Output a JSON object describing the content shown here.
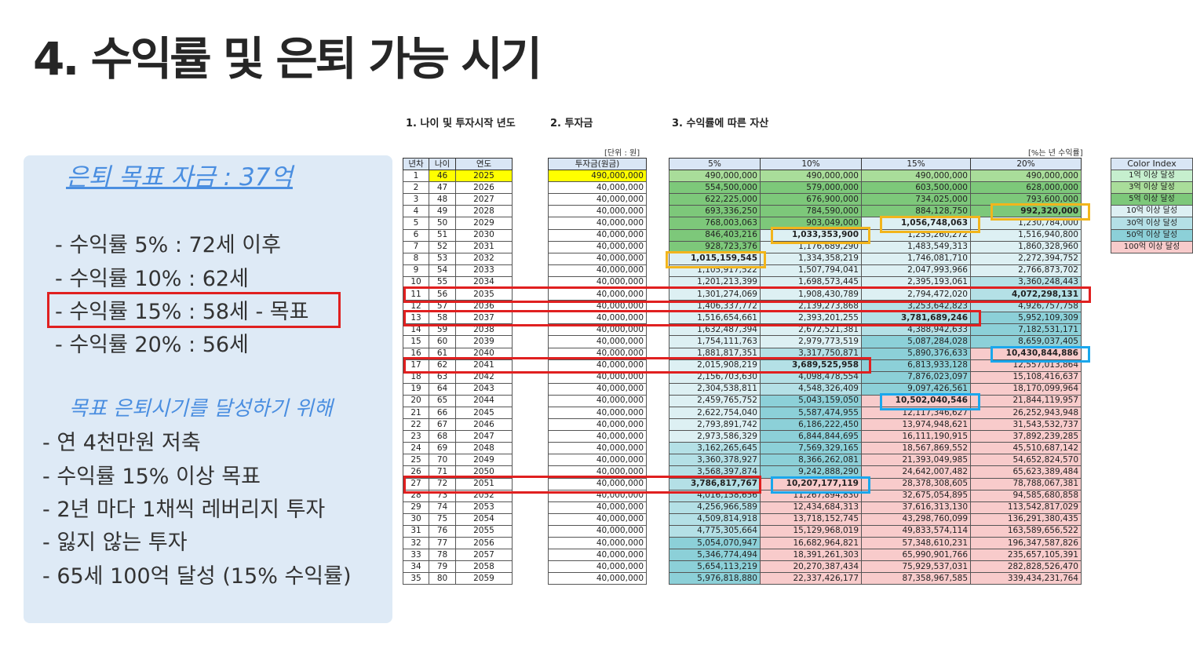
{
  "title": "4. 수익률 및 은퇴 가능 시기",
  "panel": {
    "goal": "은퇴 목표 자금 : 37억",
    "yields": [
      "- 수익률   5% : 72세 이후",
      "- 수익률 10% : 62세",
      "- 수익률 15% : 58세 - 목표",
      "- 수익률 20% : 56세"
    ],
    "subtitle": "목표 은퇴시기를 달성하기 위해",
    "tips": [
      "- 연 4천만원 저축",
      "- 수익률 15% 이상 목표",
      "- 2년 마다 1채씩 레버리지 투자",
      "- 잃지 않는 투자",
      "- 65세 100억 달성 (15% 수익률)"
    ]
  },
  "sections": {
    "s1": "1. 나이 및 투자시작 년도",
    "s2": "2. 투자금",
    "s3": "3. 수익률에 따른 자산"
  },
  "units": {
    "invest": "[단위 : 원]",
    "rate": "[%는 년 수익률]"
  },
  "headers": {
    "age_table": [
      "년차",
      "나이",
      "연도"
    ],
    "invest": "투자금(원금)",
    "rates": [
      "5%",
      "10%",
      "15%",
      "20%"
    ]
  },
  "color_index": {
    "title": "Color Index",
    "items": [
      {
        "label": "1억 이상 달성",
        "color": "#c6efce"
      },
      {
        "label": "3억 이상 달성",
        "color": "#a9dd9a"
      },
      {
        "label": "5억 이상 달성",
        "color": "#7dc87a"
      },
      {
        "label": "10억 이상 달성",
        "color": "#ddf0f3"
      },
      {
        "label": "30억 이상 달성",
        "color": "#b4e0e6"
      },
      {
        "label": "50억 이상 달성",
        "color": "#8cd0d8"
      },
      {
        "label": "100억 이상 달성",
        "color": "#f8cbcb"
      }
    ]
  },
  "rows": [
    {
      "n": "1",
      "age": "46",
      "year": "2025",
      "inv": "490,000,000",
      "v": [
        "490,000,000",
        "490,000,000",
        "490,000,000",
        "490,000,000"
      ]
    },
    {
      "n": "2",
      "age": "47",
      "year": "2026",
      "inv": "40,000,000",
      "v": [
        "554,500,000",
        "579,000,000",
        "603,500,000",
        "628,000,000"
      ]
    },
    {
      "n": "3",
      "age": "48",
      "year": "2027",
      "inv": "40,000,000",
      "v": [
        "622,225,000",
        "676,900,000",
        "734,025,000",
        "793,600,000"
      ]
    },
    {
      "n": "4",
      "age": "49",
      "year": "2028",
      "inv": "40,000,000",
      "v": [
        "693,336,250",
        "784,590,000",
        "884,128,750",
        "992,320,000"
      ]
    },
    {
      "n": "5",
      "age": "50",
      "year": "2029",
      "inv": "40,000,000",
      "v": [
        "768,003,063",
        "903,049,000",
        "1,056,748,063",
        "1,230,784,000"
      ]
    },
    {
      "n": "6",
      "age": "51",
      "year": "2030",
      "inv": "40,000,000",
      "v": [
        "846,403,216",
        "1,033,353,900",
        "1,255,260,272",
        "1,516,940,800"
      ]
    },
    {
      "n": "7",
      "age": "52",
      "year": "2031",
      "inv": "40,000,000",
      "v": [
        "928,723,376",
        "1,176,689,290",
        "1,483,549,313",
        "1,860,328,960"
      ]
    },
    {
      "n": "8",
      "age": "53",
      "year": "2032",
      "inv": "40,000,000",
      "v": [
        "1,015,159,545",
        "1,334,358,219",
        "1,746,081,710",
        "2,272,394,752"
      ]
    },
    {
      "n": "9",
      "age": "54",
      "year": "2033",
      "inv": "40,000,000",
      "v": [
        "1,105,917,522",
        "1,507,794,041",
        "2,047,993,966",
        "2,766,873,702"
      ]
    },
    {
      "n": "10",
      "age": "55",
      "year": "2034",
      "inv": "40,000,000",
      "v": [
        "1,201,213,399",
        "1,698,573,445",
        "2,395,193,061",
        "3,360,248,443"
      ]
    },
    {
      "n": "11",
      "age": "56",
      "year": "2035",
      "inv": "40,000,000",
      "v": [
        "1,301,274,069",
        "1,908,430,789",
        "2,794,472,020",
        "4,072,298,131"
      ]
    },
    {
      "n": "12",
      "age": "57",
      "year": "2036",
      "inv": "40,000,000",
      "v": [
        "1,406,337,772",
        "2,139,273,868",
        "3,253,642,823",
        "4,926,757,758"
      ]
    },
    {
      "n": "13",
      "age": "58",
      "year": "2037",
      "inv": "40,000,000",
      "v": [
        "1,516,654,661",
        "2,393,201,255",
        "3,781,689,246",
        "5,952,109,309"
      ]
    },
    {
      "n": "14",
      "age": "59",
      "year": "2038",
      "inv": "40,000,000",
      "v": [
        "1,632,487,394",
        "2,672,521,381",
        "4,388,942,633",
        "7,182,531,171"
      ]
    },
    {
      "n": "15",
      "age": "60",
      "year": "2039",
      "inv": "40,000,000",
      "v": [
        "1,754,111,763",
        "2,979,773,519",
        "5,087,284,028",
        "8,659,037,405"
      ]
    },
    {
      "n": "16",
      "age": "61",
      "year": "2040",
      "inv": "40,000,000",
      "v": [
        "1,881,817,351",
        "3,317,750,871",
        "5,890,376,633",
        "10,430,844,886"
      ]
    },
    {
      "n": "17",
      "age": "62",
      "year": "2041",
      "inv": "40,000,000",
      "v": [
        "2,015,908,219",
        "3,689,525,958",
        "6,813,933,128",
        "12,557,013,864"
      ]
    },
    {
      "n": "18",
      "age": "63",
      "year": "2042",
      "inv": "40,000,000",
      "v": [
        "2,156,703,630",
        "4,098,478,554",
        "7,876,023,097",
        "15,108,416,637"
      ]
    },
    {
      "n": "19",
      "age": "64",
      "year": "2043",
      "inv": "40,000,000",
      "v": [
        "2,304,538,811",
        "4,548,326,409",
        "9,097,426,561",
        "18,170,099,964"
      ]
    },
    {
      "n": "20",
      "age": "65",
      "year": "2044",
      "inv": "40,000,000",
      "v": [
        "2,459,765,752",
        "5,043,159,050",
        "10,502,040,546",
        "21,844,119,957"
      ]
    },
    {
      "n": "21",
      "age": "66",
      "year": "2045",
      "inv": "40,000,000",
      "v": [
        "2,622,754,040",
        "5,587,474,955",
        "12,117,346,627",
        "26,252,943,948"
      ]
    },
    {
      "n": "22",
      "age": "67",
      "year": "2046",
      "inv": "40,000,000",
      "v": [
        "2,793,891,742",
        "6,186,222,450",
        "13,974,948,621",
        "31,543,532,737"
      ]
    },
    {
      "n": "23",
      "age": "68",
      "year": "2047",
      "inv": "40,000,000",
      "v": [
        "2,973,586,329",
        "6,844,844,695",
        "16,111,190,915",
        "37,892,239,285"
      ]
    },
    {
      "n": "24",
      "age": "69",
      "year": "2048",
      "inv": "40,000,000",
      "v": [
        "3,162,265,645",
        "7,569,329,165",
        "18,567,869,552",
        "45,510,687,142"
      ]
    },
    {
      "n": "25",
      "age": "70",
      "year": "2049",
      "inv": "40,000,000",
      "v": [
        "3,360,378,927",
        "8,366,262,081",
        "21,393,049,985",
        "54,652,824,570"
      ]
    },
    {
      "n": "26",
      "age": "71",
      "year": "2050",
      "inv": "40,000,000",
      "v": [
        "3,568,397,874",
        "9,242,888,290",
        "24,642,007,482",
        "65,623,389,484"
      ]
    },
    {
      "n": "27",
      "age": "72",
      "year": "2051",
      "inv": "40,000,000",
      "v": [
        "3,786,817,767",
        "10,207,177,119",
        "28,378,308,605",
        "78,788,067,381"
      ]
    },
    {
      "n": "28",
      "age": "73",
      "year": "2052",
      "inv": "40,000,000",
      "v": [
        "4,016,158,656",
        "11,267,894,830",
        "32,675,054,895",
        "94,585,680,858"
      ]
    },
    {
      "n": "29",
      "age": "74",
      "year": "2053",
      "inv": "40,000,000",
      "v": [
        "4,256,966,589",
        "12,434,684,313",
        "37,616,313,130",
        "113,542,817,029"
      ]
    },
    {
      "n": "30",
      "age": "75",
      "year": "2054",
      "inv": "40,000,000",
      "v": [
        "4,509,814,918",
        "13,718,152,745",
        "43,298,760,099",
        "136,291,380,435"
      ]
    },
    {
      "n": "31",
      "age": "76",
      "year": "2055",
      "inv": "40,000,000",
      "v": [
        "4,775,305,664",
        "15,129,968,019",
        "49,833,574,114",
        "163,589,656,522"
      ]
    },
    {
      "n": "32",
      "age": "77",
      "year": "2056",
      "inv": "40,000,000",
      "v": [
        "5,054,070,947",
        "16,682,964,821",
        "57,348,610,231",
        "196,347,587,826"
      ]
    },
    {
      "n": "33",
      "age": "78",
      "year": "2057",
      "inv": "40,000,000",
      "v": [
        "5,346,774,494",
        "18,391,261,303",
        "65,990,901,766",
        "235,657,105,391"
      ]
    },
    {
      "n": "34",
      "age": "79",
      "year": "2058",
      "inv": "40,000,000",
      "v": [
        "5,654,113,219",
        "20,270,387,434",
        "75,929,537,031",
        "282,828,526,470"
      ]
    },
    {
      "n": "35",
      "age": "80",
      "year": "2059",
      "inv": "40,000,000",
      "v": [
        "5,976,818,880",
        "22,337,426,177",
        "87,358,967,585",
        "339,434,231,764"
      ]
    }
  ]
}
